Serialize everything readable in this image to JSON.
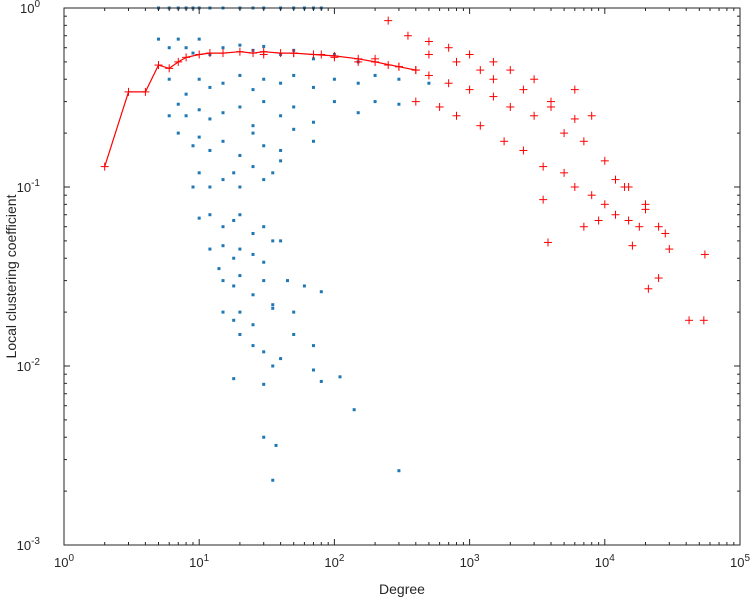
{
  "chart_data": {
    "type": "scatter",
    "title": "",
    "xlabel": "Degree",
    "ylabel": "Local clustering coefficient",
    "xscale": "log",
    "yscale": "log",
    "xlim": [
      1,
      100000
    ],
    "ylim": [
      0.001,
      1
    ],
    "grid": false,
    "legend": "none",
    "x_ticks": [
      {
        "value": 1,
        "base": "10",
        "exp": "0"
      },
      {
        "value": 10,
        "base": "10",
        "exp": "1"
      },
      {
        "value": 100,
        "base": "10",
        "exp": "2"
      },
      {
        "value": 1000,
        "base": "10",
        "exp": "3"
      },
      {
        "value": 10000,
        "base": "10",
        "exp": "4"
      },
      {
        "value": 100000,
        "base": "10",
        "exp": "5"
      }
    ],
    "y_ticks": [
      {
        "value": 0.001,
        "base": "10",
        "exp": "-3"
      },
      {
        "value": 0.01,
        "base": "10",
        "exp": "-2"
      },
      {
        "value": 0.1,
        "base": "10",
        "exp": "-1"
      },
      {
        "value": 1,
        "base": "10",
        "exp": "0"
      }
    ],
    "colors": {
      "blue": "#1f77b4",
      "red": "#ff0000",
      "axis": "#262626"
    },
    "series": [
      {
        "marker": "dot",
        "color": "#1f77b4",
        "points": [
          [
            5,
            1
          ],
          [
            6,
            1
          ],
          [
            7,
            1
          ],
          [
            8,
            1
          ],
          [
            9,
            1
          ],
          [
            10,
            1
          ],
          [
            12,
            1
          ],
          [
            15,
            1
          ],
          [
            20,
            1
          ],
          [
            25,
            1
          ],
          [
            30,
            1
          ],
          [
            40,
            1
          ],
          [
            50,
            1
          ],
          [
            60,
            1
          ],
          [
            70,
            1
          ],
          [
            80,
            1
          ],
          [
            5,
            0.67
          ],
          [
            6,
            0.6
          ],
          [
            7,
            0.67
          ],
          [
            8,
            0.6
          ],
          [
            9,
            0.56
          ],
          [
            10,
            0.67
          ],
          [
            12,
            0.55
          ],
          [
            15,
            0.6
          ],
          [
            20,
            0.62
          ],
          [
            25,
            0.58
          ],
          [
            30,
            0.61
          ],
          [
            40,
            0.55
          ],
          [
            50,
            0.58
          ],
          [
            70,
            0.52
          ],
          [
            100,
            0.55
          ],
          [
            150,
            0.5
          ],
          [
            6,
            0.4
          ],
          [
            8,
            0.33
          ],
          [
            10,
            0.4
          ],
          [
            12,
            0.36
          ],
          [
            15,
            0.38
          ],
          [
            20,
            0.42
          ],
          [
            25,
            0.35
          ],
          [
            30,
            0.4
          ],
          [
            40,
            0.38
          ],
          [
            50,
            0.42
          ],
          [
            70,
            0.36
          ],
          [
            100,
            0.4
          ],
          [
            150,
            0.38
          ],
          [
            200,
            0.42
          ],
          [
            300,
            0.4
          ],
          [
            500,
            0.38
          ],
          [
            6,
            0.25
          ],
          [
            7,
            0.29
          ],
          [
            8,
            0.25
          ],
          [
            10,
            0.27
          ],
          [
            12,
            0.24
          ],
          [
            15,
            0.26
          ],
          [
            20,
            0.28
          ],
          [
            25,
            0.22
          ],
          [
            30,
            0.3
          ],
          [
            40,
            0.25
          ],
          [
            50,
            0.28
          ],
          [
            70,
            0.23
          ],
          [
            100,
            0.3
          ],
          [
            150,
            0.26
          ],
          [
            200,
            0.3
          ],
          [
            300,
            0.29
          ],
          [
            7,
            0.2
          ],
          [
            9,
            0.17
          ],
          [
            10,
            0.19
          ],
          [
            12,
            0.16
          ],
          [
            15,
            0.18
          ],
          [
            20,
            0.15
          ],
          [
            25,
            0.2
          ],
          [
            30,
            0.17
          ],
          [
            40,
            0.16
          ],
          [
            50,
            0.21
          ],
          [
            70,
            0.18
          ],
          [
            9,
            0.1
          ],
          [
            10,
            0.12
          ],
          [
            12,
            0.1
          ],
          [
            15,
            0.11
          ],
          [
            18,
            0.12
          ],
          [
            20,
            0.1
          ],
          [
            25,
            0.13
          ],
          [
            30,
            0.11
          ],
          [
            35,
            0.12
          ],
          [
            40,
            0.14
          ],
          [
            10,
            0.067
          ],
          [
            12,
            0.07
          ],
          [
            15,
            0.06
          ],
          [
            18,
            0.065
          ],
          [
            20,
            0.07
          ],
          [
            25,
            0.055
          ],
          [
            30,
            0.06
          ],
          [
            35,
            0.05
          ],
          [
            12,
            0.045
          ],
          [
            15,
            0.047
          ],
          [
            18,
            0.04
          ],
          [
            20,
            0.045
          ],
          [
            25,
            0.042
          ],
          [
            30,
            0.038
          ],
          [
            40,
            0.05
          ],
          [
            14,
            0.035
          ],
          [
            15,
            0.03
          ],
          [
            18,
            0.028
          ],
          [
            20,
            0.032
          ],
          [
            25,
            0.025
          ],
          [
            30,
            0.03
          ],
          [
            35,
            0.022
          ],
          [
            45,
            0.03
          ],
          [
            60,
            0.028
          ],
          [
            15,
            0.02
          ],
          [
            18,
            0.018
          ],
          [
            20,
            0.02
          ],
          [
            25,
            0.017
          ],
          [
            35,
            0.021
          ],
          [
            50,
            0.02
          ],
          [
            80,
            0.026
          ],
          [
            20,
            0.015
          ],
          [
            25,
            0.013
          ],
          [
            30,
            0.012
          ],
          [
            40,
            0.011
          ],
          [
            50,
            0.015
          ],
          [
            70,
            0.013
          ],
          [
            18,
            0.0085
          ],
          [
            30,
            0.0079
          ],
          [
            70,
            0.0095
          ],
          [
            80,
            0.0082
          ],
          [
            110,
            0.0087
          ],
          [
            140,
            0.0057
          ],
          [
            35,
            0.01
          ],
          [
            30,
            0.004
          ],
          [
            37,
            0.0036
          ],
          [
            300,
            0.0026
          ],
          [
            35,
            0.0023
          ]
        ]
      },
      {
        "marker": "plus",
        "color": "#ff0000",
        "points": [
          [
            30,
            0.55
          ],
          [
            50,
            0.56
          ],
          [
            80,
            0.55
          ],
          [
            100,
            0.53
          ],
          [
            150,
            0.5
          ],
          [
            200,
            0.52
          ],
          [
            250,
            0.48
          ],
          [
            300,
            0.47
          ],
          [
            400,
            0.45
          ],
          [
            500,
            0.42
          ],
          [
            700,
            0.38
          ],
          [
            1000,
            0.35
          ],
          [
            1500,
            0.32
          ],
          [
            2000,
            0.28
          ],
          [
            3000,
            0.25
          ],
          [
            5000,
            0.2
          ],
          [
            7000,
            0.18
          ],
          [
            10000,
            0.14
          ],
          [
            15000,
            0.1
          ],
          [
            20000,
            0.08
          ],
          [
            250,
            0.85
          ],
          [
            350,
            0.7
          ],
          [
            500,
            0.65
          ],
          [
            700,
            0.6
          ],
          [
            1000,
            0.55
          ],
          [
            1500,
            0.5
          ],
          [
            2000,
            0.45
          ],
          [
            3000,
            0.4
          ],
          [
            4000,
            0.3
          ],
          [
            6000,
            0.35
          ],
          [
            8000,
            0.25
          ],
          [
            400,
            0.3
          ],
          [
            600,
            0.28
          ],
          [
            800,
            0.25
          ],
          [
            1200,
            0.22
          ],
          [
            1800,
            0.18
          ],
          [
            2500,
            0.16
          ],
          [
            3500,
            0.13
          ],
          [
            5000,
            0.12
          ],
          [
            6000,
            0.1
          ],
          [
            8000,
            0.09
          ],
          [
            10000,
            0.08
          ],
          [
            12000,
            0.07
          ],
          [
            15000,
            0.065
          ],
          [
            500,
            0.55
          ],
          [
            800,
            0.5
          ],
          [
            1200,
            0.45
          ],
          [
            1500,
            0.4
          ],
          [
            2500,
            0.35
          ],
          [
            4000,
            0.28
          ],
          [
            6000,
            0.24
          ],
          [
            3500,
            0.085
          ],
          [
            3800,
            0.049
          ],
          [
            7000,
            0.06
          ],
          [
            9000,
            0.065
          ],
          [
            12000,
            0.11
          ],
          [
            14000,
            0.1
          ],
          [
            18000,
            0.06
          ],
          [
            20000,
            0.075
          ],
          [
            25000,
            0.06
          ],
          [
            28000,
            0.055
          ],
          [
            30000,
            0.045
          ],
          [
            16000,
            0.047
          ],
          [
            21000,
            0.027
          ],
          [
            25000,
            0.031
          ],
          [
            42000,
            0.018
          ],
          [
            54000,
            0.018
          ],
          [
            55000,
            0.042
          ]
        ]
      },
      {
        "marker": "line-plus",
        "color": "#ff0000",
        "points": [
          [
            2,
            0.13
          ],
          [
            3,
            0.34
          ],
          [
            4,
            0.34
          ],
          [
            5,
            0.48
          ],
          [
            6,
            0.46
          ],
          [
            7,
            0.5
          ],
          [
            8,
            0.53
          ],
          [
            10,
            0.55
          ],
          [
            12,
            0.56
          ],
          [
            15,
            0.56
          ],
          [
            20,
            0.57
          ],
          [
            25,
            0.56
          ],
          [
            30,
            0.57
          ],
          [
            40,
            0.56
          ],
          [
            50,
            0.56
          ],
          [
            70,
            0.55
          ],
          [
            100,
            0.54
          ],
          [
            150,
            0.52
          ],
          [
            200,
            0.5
          ],
          [
            300,
            0.47
          ],
          [
            400,
            0.45
          ]
        ]
      }
    ]
  }
}
